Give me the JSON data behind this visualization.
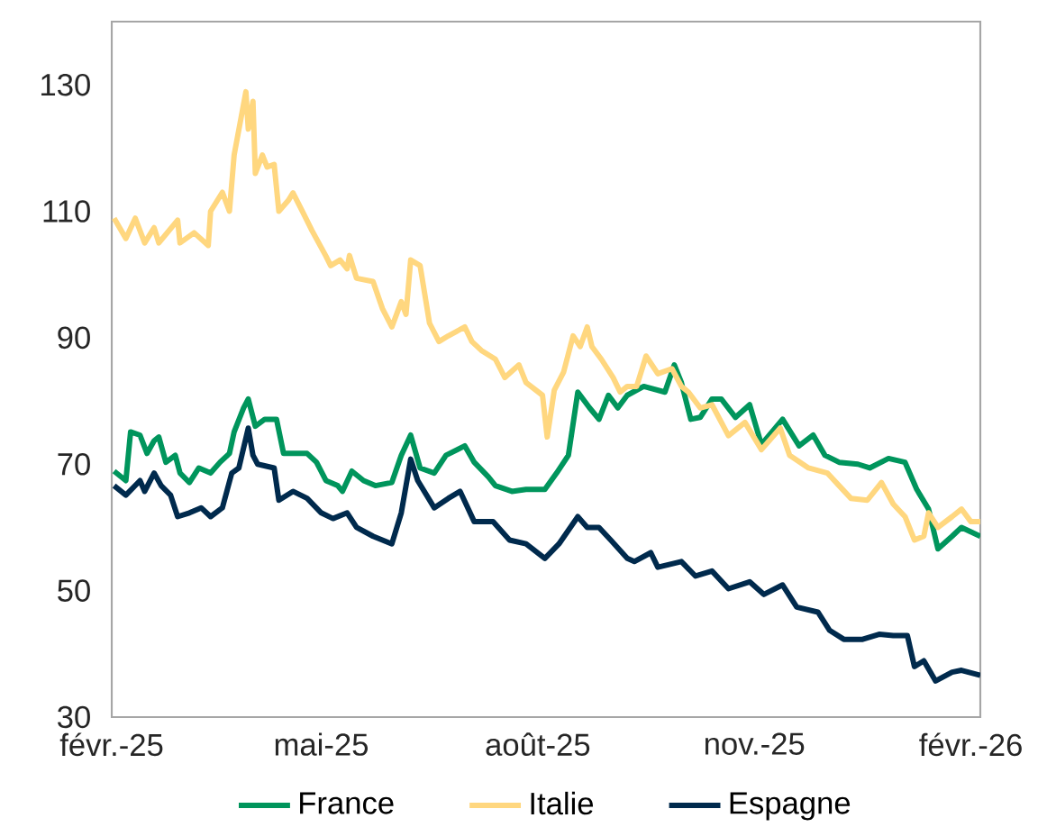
{
  "chart_data": {
    "type": "line",
    "xlim": [
      "2025-02-01",
      "2026-02-05"
    ],
    "xticks": [
      {
        "value": "2025-02-01",
        "label": "févr.-25"
      },
      {
        "value": "2025-05-01",
        "label": "mai-25"
      },
      {
        "value": "2025-08-01",
        "label": "août-25"
      },
      {
        "value": "2025-11-01",
        "label": "nov.-25"
      },
      {
        "value": "2026-02-01",
        "label": "févr.-26"
      }
    ],
    "ylim": [
      30,
      140
    ],
    "yticks": [
      30,
      50,
      70,
      90,
      110,
      130
    ],
    "grid": false,
    "legend": "bottom",
    "marker": "none",
    "line_style": "solid",
    "series": [
      {
        "name": "France",
        "color": "#00955c",
        "x": [
          "2025-02-02",
          "2025-02-07",
          "2025-02-09",
          "2025-02-13",
          "2025-02-16",
          "2025-02-19",
          "2025-02-21",
          "2025-02-24",
          "2025-02-28",
          "2025-03-02",
          "2025-03-06",
          "2025-03-10",
          "2025-03-15",
          "2025-03-19",
          "2025-03-23",
          "2025-03-25",
          "2025-03-29",
          "2025-03-31",
          "2025-04-03",
          "2025-04-07",
          "2025-04-12",
          "2025-04-15",
          "2025-04-19",
          "2025-04-25",
          "2025-04-29",
          "2025-05-03",
          "2025-05-08",
          "2025-05-10",
          "2025-05-14",
          "2025-05-19",
          "2025-05-24",
          "2025-05-31",
          "2025-06-04",
          "2025-06-08",
          "2025-06-12",
          "2025-06-18",
          "2025-06-23",
          "2025-07-01",
          "2025-07-05",
          "2025-07-11",
          "2025-07-14",
          "2025-07-21",
          "2025-07-27",
          "2025-08-04",
          "2025-08-09",
          "2025-08-14",
          "2025-08-18",
          "2025-08-23",
          "2025-08-27",
          "2025-08-31",
          "2025-09-04",
          "2025-09-08",
          "2025-09-15",
          "2025-09-24",
          "2025-09-28",
          "2025-10-01",
          "2025-10-05",
          "2025-10-09",
          "2025-10-14",
          "2025-10-18",
          "2025-10-24",
          "2025-10-30",
          "2025-11-04",
          "2025-11-13",
          "2025-11-20",
          "2025-11-26",
          "2025-12-01",
          "2025-12-07",
          "2025-12-15",
          "2025-12-20",
          "2025-12-28",
          "2026-01-04",
          "2026-01-09",
          "2026-01-14",
          "2026-01-18",
          "2026-01-24",
          "2026-01-28",
          "2026-02-05"
        ],
        "values": [
          68.9,
          67.4,
          75.1,
          74.6,
          71.7,
          73.7,
          74.3,
          70.3,
          71.4,
          68.6,
          67.1,
          69.4,
          68.6,
          70.3,
          71.7,
          75.1,
          78.9,
          80.3,
          76,
          77.1,
          77.1,
          71.7,
          71.7,
          71.7,
          70.3,
          67.4,
          66.6,
          65.7,
          68.9,
          67.4,
          66.6,
          67.1,
          71.4,
          74.6,
          69.4,
          68.6,
          71.4,
          72.9,
          70.3,
          68,
          66.6,
          65.7,
          66,
          66,
          68.6,
          71.4,
          81.4,
          78.9,
          77.1,
          80.9,
          78.9,
          80.9,
          82.3,
          81.4,
          85.7,
          82.9,
          77.1,
          77.4,
          80.3,
          80.3,
          77.4,
          79.4,
          73.1,
          77.1,
          72.9,
          74.6,
          71.4,
          70.3,
          70,
          69.4,
          70.9,
          70.3,
          66,
          62.9,
          56.6,
          58.6,
          60,
          58.6
        ]
      },
      {
        "name": "Italie",
        "color": "#ffd77f",
        "x": [
          "2025-02-02",
          "2025-02-07",
          "2025-02-11",
          "2025-02-15",
          "2025-02-19",
          "2025-02-21",
          "2025-03-01",
          "2025-03-02",
          "2025-03-08",
          "2025-03-14",
          "2025-03-15",
          "2025-03-20",
          "2025-03-23",
          "2025-03-25",
          "2025-03-30",
          "2025-03-31",
          "2025-04-02",
          "2025-04-03",
          "2025-04-06",
          "2025-04-08",
          "2025-04-11",
          "2025-04-13",
          "2025-04-17",
          "2025-04-19",
          "2025-04-23",
          "2025-04-27",
          "2025-05-03",
          "2025-05-05",
          "2025-05-09",
          "2025-05-12",
          "2025-05-13",
          "2025-05-16",
          "2025-05-23",
          "2025-05-27",
          "2025-05-31",
          "2025-06-04",
          "2025-06-06",
          "2025-06-08",
          "2025-06-12",
          "2025-06-16",
          "2025-06-20",
          "2025-06-24",
          "2025-07-01",
          "2025-07-04",
          "2025-07-08",
          "2025-07-14",
          "2025-07-18",
          "2025-07-24",
          "2025-07-27",
          "2025-08-03",
          "2025-08-05",
          "2025-08-08",
          "2025-08-12",
          "2025-08-16",
          "2025-08-19",
          "2025-08-22",
          "2025-08-24",
          "2025-08-28",
          "2025-09-02",
          "2025-09-05",
          "2025-09-08",
          "2025-09-12",
          "2025-09-16",
          "2025-09-21",
          "2025-09-27",
          "2025-10-01",
          "2025-10-04",
          "2025-10-09",
          "2025-10-14",
          "2025-10-21",
          "2025-10-28",
          "2025-11-04",
          "2025-11-12",
          "2025-11-16",
          "2025-11-24",
          "2025-12-02",
          "2025-12-07",
          "2025-12-12",
          "2025-12-19",
          "2025-12-25",
          "2025-12-30",
          "2026-01-04",
          "2026-01-08",
          "2026-01-12",
          "2026-01-14",
          "2026-01-18",
          "2026-01-24",
          "2026-01-28",
          "2026-02-01",
          "2026-02-05"
        ],
        "values": [
          108.9,
          105.7,
          108.9,
          105,
          107.4,
          105,
          108.6,
          105,
          106.6,
          104.6,
          110,
          113,
          110,
          118.9,
          128.9,
          123,
          127.4,
          116,
          118.9,
          117,
          117.4,
          110,
          111.7,
          112.9,
          110,
          107,
          102.9,
          101.4,
          102.3,
          100.9,
          103,
          99.4,
          98.9,
          94.6,
          91.7,
          95.7,
          93.7,
          102.3,
          101.4,
          92.3,
          89.4,
          90.3,
          91.7,
          89.4,
          88,
          86.6,
          83.7,
          85.7,
          82.9,
          80.9,
          74.3,
          81.7,
          84.6,
          90.3,
          88.6,
          91.7,
          88.6,
          86.6,
          83.7,
          81.4,
          82.3,
          82.3,
          87.1,
          84.3,
          85.1,
          82.3,
          81.4,
          78.9,
          79.4,
          74.5,
          76.6,
          72.3,
          75.7,
          71.4,
          69.4,
          68.6,
          66.6,
          64.6,
          64.3,
          67.1,
          63.7,
          61.7,
          58,
          58.6,
          62.3,
          60,
          61.7,
          62.9,
          60.9,
          60.9
        ]
      },
      {
        "name": "Espagne",
        "color": "#002a4d",
        "x": [
          "2025-02-02",
          "2025-02-07",
          "2025-02-13",
          "2025-02-15",
          "2025-02-19",
          "2025-02-22",
          "2025-02-26",
          "2025-03-01",
          "2025-03-06",
          "2025-03-11",
          "2025-03-15",
          "2025-03-20",
          "2025-03-24",
          "2025-03-27",
          "2025-03-31",
          "2025-04-02",
          "2025-04-04",
          "2025-04-11",
          "2025-04-13",
          "2025-04-19",
          "2025-04-25",
          "2025-05-01",
          "2025-05-06",
          "2025-05-12",
          "2025-05-16",
          "2025-05-23",
          "2025-05-31",
          "2025-06-04",
          "2025-06-08",
          "2025-06-11",
          "2025-06-18",
          "2025-06-24",
          "2025-06-29",
          "2025-07-05",
          "2025-07-13",
          "2025-07-20",
          "2025-07-27",
          "2025-08-04",
          "2025-08-10",
          "2025-08-18",
          "2025-08-22",
          "2025-08-27",
          "2025-09-01",
          "2025-09-08",
          "2025-09-11",
          "2025-09-18",
          "2025-09-21",
          "2025-10-01",
          "2025-10-07",
          "2025-10-14",
          "2025-10-21",
          "2025-10-30",
          "2025-11-05",
          "2025-11-13",
          "2025-11-19",
          "2025-11-28",
          "2025-12-03",
          "2025-12-09",
          "2025-12-17",
          "2025-12-24",
          "2025-12-30",
          "2026-01-05",
          "2026-01-08",
          "2026-01-12",
          "2026-01-17",
          "2026-01-24",
          "2026-01-28",
          "2026-02-05"
        ],
        "values": [
          66.6,
          65.1,
          67.4,
          65.7,
          68.6,
          66.6,
          65.1,
          61.7,
          62.3,
          63.1,
          61.7,
          63.1,
          68.6,
          69.4,
          75.7,
          71.4,
          70,
          69.4,
          64.3,
          65.7,
          64.6,
          62.3,
          61.4,
          62.3,
          60,
          58.6,
          57.4,
          62.3,
          70.8,
          67.4,
          63.1,
          64.6,
          65.7,
          60.9,
          60.9,
          58,
          57.4,
          55.1,
          57.4,
          61.7,
          60,
          60,
          58,
          55.1,
          54.6,
          56,
          53.7,
          54.6,
          52.3,
          53.1,
          50.3,
          51.4,
          49.4,
          50.9,
          47.4,
          46.6,
          43.7,
          42.3,
          42.3,
          43.1,
          42.9,
          42.9,
          38,
          38.9,
          35.7,
          37.1,
          37.4,
          36.6
        ]
      }
    ]
  }
}
